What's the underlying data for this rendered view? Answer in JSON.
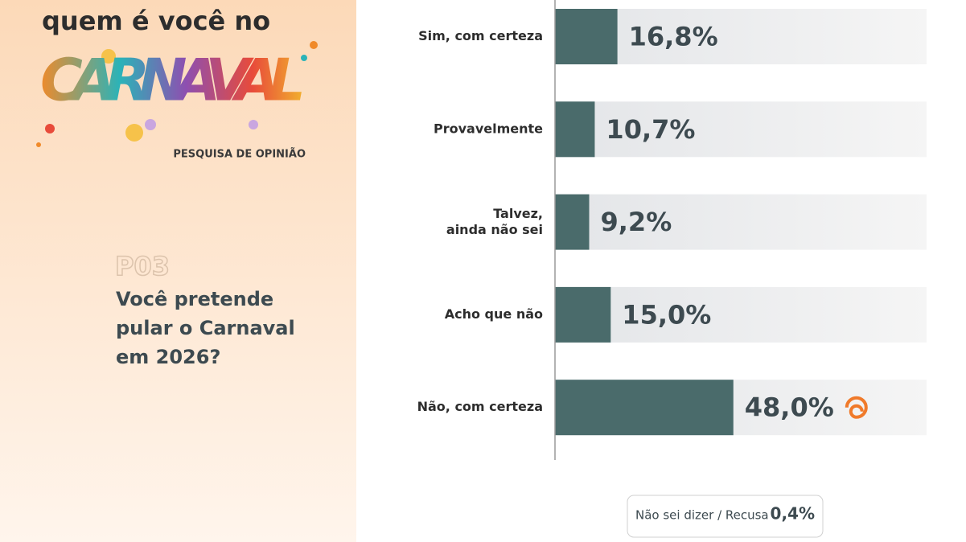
{
  "header": {
    "title": "quem é você no",
    "logo": "CARNAVAL",
    "subtitle": "PESQUISA DE OPINIÃO"
  },
  "question": {
    "code": "P03",
    "lines": [
      "Você pretende",
      "pular o Carnaval",
      "em 2026?"
    ]
  },
  "chart_data": {
    "type": "bar",
    "orientation": "horizontal",
    "categories": [
      "Sim, com certeza",
      "Provavelmente",
      "Talvez,\nainda não sei",
      "Acho que não",
      "Não, com certeza"
    ],
    "values": [
      16.8,
      10.7,
      9.2,
      15.0,
      48.0
    ],
    "value_labels": [
      "16,8%",
      "10,7%",
      "9,2%",
      "15,0%",
      "48,0%"
    ],
    "color": "#4a6b6b",
    "xlim": [
      0,
      100
    ]
  },
  "note": {
    "label": "Não sei dizer / Recusa",
    "value_label": "0,4%"
  }
}
